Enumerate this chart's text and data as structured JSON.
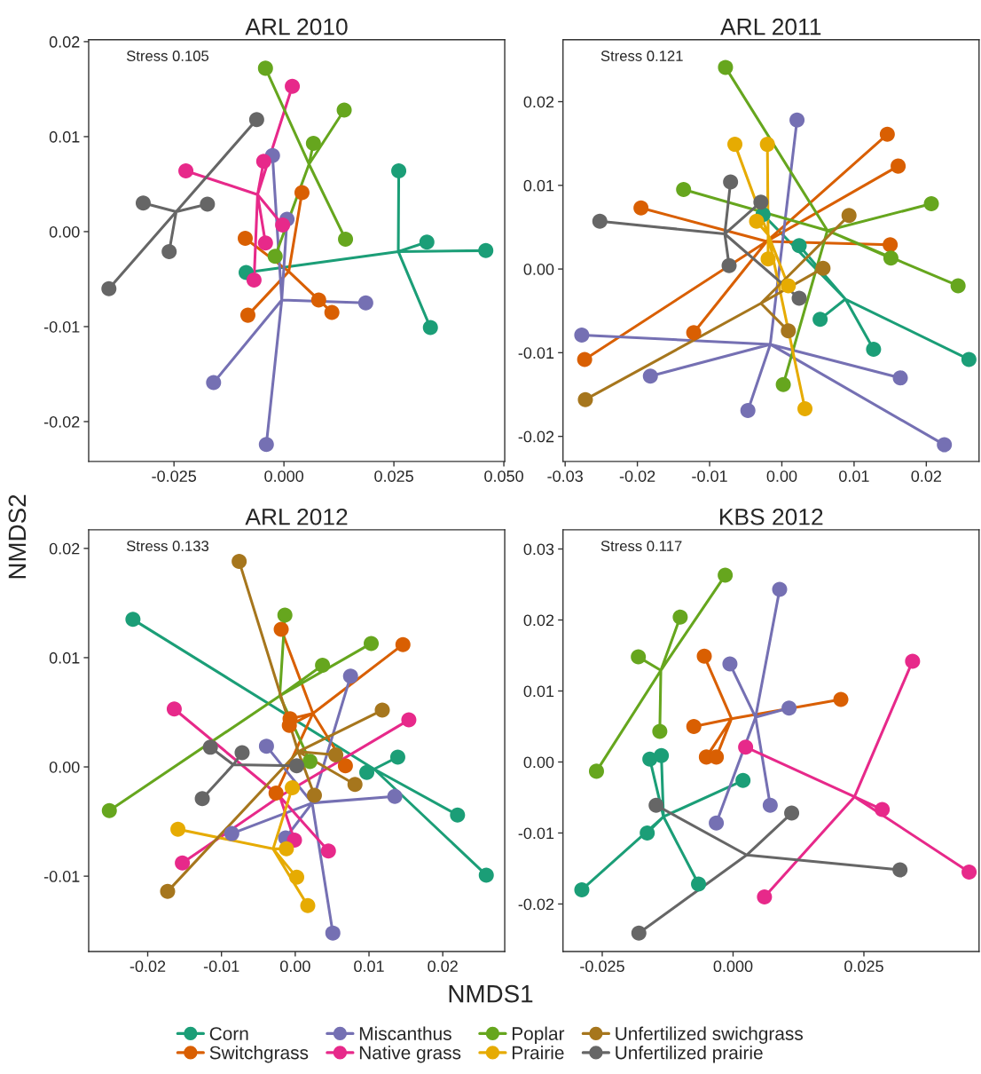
{
  "chart_data": [
    {
      "type": "scatter",
      "title": "ARL 2010",
      "ylabel": "NMDS2",
      "annotations": [
        "Stress 0.105"
      ],
      "xlim": [
        -0.0444,
        0.0502
      ],
      "ylim": [
        -0.0242,
        0.0202
      ],
      "xticks": [
        {
          "value": -0.025,
          "label": "-0.025"
        },
        {
          "value": 0,
          "label": "0.000"
        },
        {
          "value": 0.025,
          "label": "0.025"
        },
        {
          "value": 0.05,
          "label": "0.050"
        }
      ],
      "yticks": [
        {
          "value": 0.02,
          "label": "0.02"
        },
        {
          "value": 0.01,
          "label": "0.01"
        },
        {
          "value": 0,
          "label": "0.00"
        },
        {
          "value": -0.01,
          "label": "-0.01"
        },
        {
          "value": -0.02,
          "label": "-0.02"
        }
      ],
      "grid": false,
      "line_style": "solid",
      "legend": "bottom",
      "series": [
        {
          "type": "line",
          "color": "#1b9e77",
          "x": [
            0.0261,
            0.026,
            0.0325,
            0.026,
            0.0459,
            0.026,
            0.0333,
            0.026,
            -0.0086
          ],
          "values": [
            0.0064,
            -0.0021,
            -0.0011,
            -0.0021,
            -0.002,
            -0.0021,
            -0.0101,
            -0.0021,
            -0.0043
          ]
        },
        {
          "type": "line",
          "color": "#d95f02",
          "x": [
            0.0041,
            0.0011,
            -0.0088,
            0.0011,
            0.0079,
            0.0011,
            0.0109,
            0.0011,
            -0.0082
          ],
          "values": [
            0.0041,
            -0.0042,
            -0.0007,
            -0.0042,
            -0.0072,
            -0.0042,
            -0.0085,
            -0.0042,
            -0.0088
          ]
        },
        {
          "type": "line",
          "color": "#7570b3",
          "x": [
            -0.0026,
            -0.0005,
            0.0007,
            -0.0005,
            0.0186,
            -0.0005,
            -0.016,
            -0.0005,
            -0.004
          ],
          "values": [
            0.008,
            -0.0072,
            0.0013,
            -0.0072,
            -0.0075,
            -0.0072,
            -0.0159,
            -0.0072,
            -0.0224
          ]
        },
        {
          "type": "line",
          "color": "#e7298a",
          "x": [
            0.0019,
            -0.006,
            -0.0223,
            -0.006,
            -0.0046,
            -0.006,
            -0.0003,
            -0.006,
            -0.0042,
            -0.006,
            -0.0068
          ],
          "values": [
            0.0153,
            0.0039,
            0.0064,
            0.0039,
            0.0074,
            0.0039,
            0.0007,
            0.0039,
            -0.0012,
            0.0039,
            -0.0051
          ]
        },
        {
          "type": "line",
          "color": "#66a61e",
          "x": [
            -0.0042,
            0.0057,
            0.0137,
            0.0057,
            0.0067,
            0.0057,
            0.014,
            0.0057,
            -0.002
          ],
          "values": [
            0.0172,
            0.0071,
            0.0128,
            0.0071,
            0.0093,
            0.0071,
            -0.0008,
            0.0071,
            -0.0026
          ]
        },
        {
          "type": "line",
          "color": "#666666",
          "x": [
            -0.0062,
            -0.0245,
            -0.032,
            -0.0245,
            -0.0174,
            -0.0245,
            -0.0261,
            -0.0245,
            -0.0398
          ],
          "values": [
            0.0118,
            0.0021,
            0.003,
            0.0021,
            0.0029,
            0.0021,
            -0.0021,
            0.0021,
            -0.006
          ]
        },
        {
          "type": "scatter",
          "marker": "circle",
          "name": "Corn",
          "color": "#1b9e77",
          "x": [
            0.0261,
            0.0325,
            0.0459,
            0.0333,
            -0.0086
          ],
          "values": [
            0.0064,
            -0.0011,
            -0.002,
            -0.0101,
            -0.0043
          ]
        },
        {
          "type": "scatter",
          "marker": "circle",
          "name": "Switchgrass",
          "color": "#d95f02",
          "x": [
            0.0041,
            -0.0088,
            0.0079,
            0.0109,
            -0.0082
          ],
          "values": [
            0.0041,
            -0.0007,
            -0.0072,
            -0.0085,
            -0.0088
          ]
        },
        {
          "type": "scatter",
          "marker": "circle",
          "name": "Miscanthus",
          "color": "#7570b3",
          "x": [
            -0.0026,
            0.0007,
            0.0186,
            -0.016,
            -0.004
          ],
          "values": [
            0.008,
            0.0013,
            -0.0075,
            -0.0159,
            -0.0224
          ]
        },
        {
          "type": "scatter",
          "marker": "circle",
          "name": "Native grass",
          "color": "#e7298a",
          "x": [
            0.0019,
            -0.0223,
            -0.0046,
            -0.0003,
            -0.0042,
            -0.0068
          ],
          "values": [
            0.0153,
            0.0064,
            0.0074,
            0.0007,
            -0.0012,
            -0.0051
          ]
        },
        {
          "type": "scatter",
          "marker": "circle",
          "name": "Poplar",
          "color": "#66a61e",
          "x": [
            -0.0042,
            0.0137,
            0.0067,
            0.014,
            -0.002
          ],
          "values": [
            0.0172,
            0.0128,
            0.0093,
            -0.0008,
            -0.0026
          ]
        },
        {
          "type": "scatter",
          "marker": "circle",
          "name": "Unfertilized prairie",
          "color": "#666666",
          "x": [
            -0.0062,
            -0.032,
            -0.0174,
            -0.0261,
            -0.0398
          ],
          "values": [
            0.0118,
            0.003,
            0.0029,
            -0.0021,
            -0.006
          ]
        }
      ]
    },
    {
      "type": "scatter",
      "title": "ARL 2011",
      "annotations": [
        "Stress 0.121"
      ],
      "xlim": [
        -0.0303,
        0.0273
      ],
      "ylim": [
        -0.023,
        0.0274
      ],
      "xticks": [
        {
          "value": -0.03,
          "label": "-0.03"
        },
        {
          "value": -0.02,
          "label": "-0.02"
        },
        {
          "value": -0.01,
          "label": "-0.01"
        },
        {
          "value": 0,
          "label": "0.00"
        },
        {
          "value": 0.01,
          "label": "0.01"
        },
        {
          "value": 0.02,
          "label": "0.02"
        }
      ],
      "yticks": [
        {
          "value": 0.02,
          "label": "0.02"
        },
        {
          "value": 0.01,
          "label": "0.01"
        },
        {
          "value": 0,
          "label": "0.00"
        },
        {
          "value": -0.01,
          "label": "-0.01"
        },
        {
          "value": -0.02,
          "label": "-0.02"
        }
      ],
      "grid": false,
      "line_style": "solid",
      "legend": "bottom",
      "series": [
        {
          "type": "line",
          "color": "#1b9e77",
          "x": [
            0.0024,
            0.0088,
            0.0053,
            0.0088,
            0.0127,
            0.0088,
            0.0259,
            0.0088,
            -0.0026
          ],
          "values": [
            0.0028,
            -0.0036,
            -0.006,
            -0.0036,
            -0.0096,
            -0.0036,
            -0.0108,
            -0.0036,
            0.0065
          ]
        },
        {
          "type": "line",
          "color": "#d95f02",
          "x": [
            0.0146,
            -0.0021,
            0.0161,
            -0.0021,
            -0.0195,
            -0.0021,
            0.015,
            -0.0021,
            -0.0122,
            -0.0021,
            -0.0273
          ],
          "values": [
            0.0161,
            0.0033,
            0.0123,
            0.0033,
            0.0073,
            0.0033,
            0.0029,
            0.0033,
            -0.0076,
            0.0033,
            -0.0108
          ]
        },
        {
          "type": "line",
          "color": "#7570b3",
          "x": [
            0.0021,
            -0.0016,
            -0.0277,
            -0.0016,
            -0.0182,
            -0.0016,
            -0.0047,
            -0.0016,
            0.0164,
            -0.0016,
            0.0225
          ],
          "values": [
            0.0178,
            -0.009,
            -0.0079,
            -0.009,
            -0.0128,
            -0.009,
            -0.0169,
            -0.009,
            -0.013,
            -0.009,
            -0.021
          ]
        },
        {
          "type": "line",
          "color": "#66a61e",
          "x": [
            -0.0078,
            0.0063,
            -0.0136,
            0.0063,
            0.0207,
            0.0063,
            0.0151,
            0.0063,
            0.0244,
            0.0063,
            0.0002
          ],
          "values": [
            0.0241,
            0.0046,
            0.0095,
            0.0046,
            0.0078,
            0.0046,
            0.0013,
            0.0046,
            -0.002,
            0.0046,
            -0.0138
          ]
        },
        {
          "type": "line",
          "color": "#e6ab02",
          "x": [
            -0.0065,
            -0.0019,
            -0.002,
            -0.0019,
            -0.0035,
            -0.0019,
            -0.0019,
            -0.0019,
            0.0009,
            -0.0019,
            0.0032
          ],
          "values": [
            0.0149,
            0.0041,
            0.0149,
            0.0041,
            0.0057,
            0.0041,
            0.0012,
            0.0041,
            -0.002,
            0.0041,
            -0.0167
          ]
        },
        {
          "type": "line",
          "color": "#a6761d",
          "x": [
            0.0093,
            -0.0029,
            0.0057,
            -0.0029,
            0.0009,
            -0.0029,
            -0.0272
          ],
          "values": [
            0.0064,
            -0.0041,
            0.0001,
            -0.0041,
            -0.0074,
            -0.0041,
            -0.0156
          ]
        },
        {
          "type": "line",
          "color": "#666666",
          "x": [
            -0.0071,
            -0.0079,
            -0.0029,
            -0.0079,
            -0.0252,
            -0.0079,
            -0.0073,
            -0.0079,
            0.0024
          ],
          "values": [
            0.0104,
            0.0042,
            0.008,
            0.0042,
            0.0057,
            0.0042,
            0.0004,
            0.0042,
            -0.0035
          ]
        },
        {
          "type": "scatter",
          "marker": "circle",
          "name": "Corn",
          "color": "#1b9e77",
          "x": [
            0.0024,
            0.0053,
            0.0127,
            0.0259,
            -0.0026
          ],
          "values": [
            0.0028,
            -0.006,
            -0.0096,
            -0.0108,
            0.0065
          ]
        },
        {
          "type": "scatter",
          "marker": "circle",
          "name": "Switchgrass",
          "color": "#d95f02",
          "x": [
            0.0146,
            0.0161,
            -0.0195,
            0.015,
            -0.0122,
            -0.0273
          ],
          "values": [
            0.0161,
            0.0123,
            0.0073,
            0.0029,
            -0.0076,
            -0.0108
          ]
        },
        {
          "type": "scatter",
          "marker": "circle",
          "name": "Miscanthus",
          "color": "#7570b3",
          "x": [
            0.0021,
            -0.0277,
            -0.0182,
            -0.0047,
            0.0164,
            0.0225
          ],
          "values": [
            0.0178,
            -0.0079,
            -0.0128,
            -0.0169,
            -0.013,
            -0.021
          ]
        },
        {
          "type": "scatter",
          "marker": "circle",
          "name": "Poplar",
          "color": "#66a61e",
          "x": [
            -0.0078,
            -0.0136,
            0.0207,
            0.0151,
            0.0244,
            0.0002
          ],
          "values": [
            0.0241,
            0.0095,
            0.0078,
            0.0013,
            -0.002,
            -0.0138
          ]
        },
        {
          "type": "scatter",
          "marker": "circle",
          "name": "Prairie",
          "color": "#e6ab02",
          "x": [
            -0.0065,
            -0.002,
            -0.0035,
            -0.0019,
            0.0009,
            0.0032
          ],
          "values": [
            0.0149,
            0.0149,
            0.0057,
            0.0012,
            -0.002,
            -0.0167
          ]
        },
        {
          "type": "scatter",
          "marker": "circle",
          "name": "Unfertilized swichgrass",
          "color": "#a6761d",
          "x": [
            0.0093,
            0.0057,
            0.0009,
            -0.0272
          ],
          "values": [
            0.0064,
            0.0001,
            -0.0074,
            -0.0156
          ]
        },
        {
          "type": "scatter",
          "marker": "circle",
          "name": "Unfertilized prairie",
          "color": "#666666",
          "x": [
            -0.0071,
            -0.0029,
            -0.0252,
            -0.0073,
            0.0024
          ],
          "values": [
            0.0104,
            0.008,
            0.0057,
            0.0004,
            -0.0035
          ]
        }
      ]
    },
    {
      "type": "scatter",
      "title": "ARL 2012",
      "xlabel": "NMDS1",
      "annotations": [
        "Stress 0.133"
      ],
      "xlim": [
        -0.028,
        0.0284
      ],
      "ylim": [
        -0.0169,
        0.0217
      ],
      "xticks": [
        {
          "value": -0.02,
          "label": "-0.02"
        },
        {
          "value": -0.01,
          "label": "-0.01"
        },
        {
          "value": 0,
          "label": "0.00"
        },
        {
          "value": 0.01,
          "label": "0.01"
        },
        {
          "value": 0.02,
          "label": "0.02"
        }
      ],
      "yticks": [
        {
          "value": 0.02,
          "label": "0.02"
        },
        {
          "value": 0.01,
          "label": "0.01"
        },
        {
          "value": 0,
          "label": "0.00"
        },
        {
          "value": -0.01,
          "label": "-0.01"
        }
      ],
      "grid": false,
      "line_style": "solid",
      "legend": "bottom",
      "series": [
        {
          "type": "line",
          "color": "#1b9e77",
          "x": [
            -0.022,
            0.0107,
            0.0139,
            0.0107,
            0.0097,
            0.0107,
            0.022,
            0.0107,
            0.0259
          ],
          "values": [
            0.0135,
            -0.0002,
            0.0009,
            -0.0002,
            -0.0005,
            -0.0002,
            -0.0044,
            -0.0002,
            -0.0099
          ]
        },
        {
          "type": "line",
          "color": "#d95f02",
          "x": [
            -0.0019,
            0.0024,
            0.0146,
            0.0024,
            -0.0007,
            0.0024,
            -0.0008,
            0.0024,
            0.0068,
            0.0024,
            -0.0026
          ],
          "values": [
            0.0126,
            0.0049,
            0.0112,
            0.0049,
            0.0044,
            0.0049,
            0.0038,
            0.0049,
            0.0001,
            0.0049,
            -0.0024
          ]
        },
        {
          "type": "line",
          "color": "#7570b3",
          "x": [
            0.0075,
            0.0023,
            -0.0039,
            0.0023,
            0.0135,
            0.0023,
            -0.0086,
            0.0023,
            -0.0013,
            0.0023,
            0.0051
          ],
          "values": [
            0.0083,
            -0.0033,
            0.0019,
            -0.0033,
            -0.0027,
            -0.0033,
            -0.0061,
            -0.0033,
            -0.0065,
            -0.0033,
            -0.0152
          ]
        },
        {
          "type": "line",
          "color": "#e7298a",
          "x": [
            -0.0164,
            -0.0021,
            0.0154,
            -0.0021,
            -0.0153,
            -0.0021,
            -0.0001,
            -0.0021,
            0.0045
          ],
          "values": [
            0.0053,
            -0.0027,
            0.0043,
            -0.0027,
            -0.0088,
            -0.0027,
            -0.0067,
            -0.0027,
            -0.0077
          ]
        },
        {
          "type": "line",
          "color": "#66a61e",
          "x": [
            -0.0014,
            -0.0021,
            0.0103,
            -0.0021,
            0.0037,
            -0.0021,
            0.002,
            -0.0021,
            -0.0252
          ],
          "values": [
            0.0139,
            0.0065,
            0.0113,
            0.0065,
            0.0093,
            0.0065,
            0.0005,
            0.0065,
            -0.004
          ]
        },
        {
          "type": "line",
          "color": "#e6ab02",
          "x": [
            -0.0159,
            -0.003,
            -0.0004,
            -0.003,
            -0.0012,
            -0.003,
            0.0002,
            -0.003,
            0.0017
          ],
          "values": [
            -0.0057,
            -0.0075,
            -0.0019,
            -0.0075,
            -0.0075,
            -0.0075,
            -0.0101,
            -0.0075,
            -0.0127
          ]
        },
        {
          "type": "line",
          "color": "#a6761d",
          "x": [
            -0.0076,
            0.0004,
            0.0118,
            0.0004,
            0.0055,
            0.0004,
            0.0081,
            0.0004,
            0.0026,
            0.0004,
            -0.0173
          ],
          "values": [
            0.0188,
            0.0014,
            0.0052,
            0.0014,
            0.0011,
            0.0014,
            -0.0016,
            0.0014,
            -0.0026,
            0.0014,
            -0.0114
          ]
        },
        {
          "type": "line",
          "color": "#666666",
          "x": [
            -0.0115,
            -0.0084,
            -0.0072,
            -0.0084,
            0.0002,
            -0.0084,
            -0.0126
          ],
          "values": [
            0.0018,
            0.0002,
            0.0013,
            0.0002,
            0.0001,
            0.0002,
            -0.0029
          ]
        },
        {
          "type": "scatter",
          "marker": "circle",
          "name": "Corn",
          "color": "#1b9e77",
          "x": [
            -0.022,
            0.0139,
            0.0097,
            0.022,
            0.0259
          ],
          "values": [
            0.0135,
            0.0009,
            -0.0005,
            -0.0044,
            -0.0099
          ]
        },
        {
          "type": "scatter",
          "marker": "circle",
          "name": "Switchgrass",
          "color": "#d95f02",
          "x": [
            -0.0019,
            0.0146,
            -0.0007,
            -0.0008,
            0.0068,
            -0.0026
          ],
          "values": [
            0.0126,
            0.0112,
            0.0044,
            0.0038,
            0.0001,
            -0.0024
          ]
        },
        {
          "type": "scatter",
          "marker": "circle",
          "name": "Miscanthus",
          "color": "#7570b3",
          "x": [
            0.0075,
            -0.0039,
            0.0135,
            -0.0086,
            -0.0013,
            0.0051
          ],
          "values": [
            0.0083,
            0.0019,
            -0.0027,
            -0.0061,
            -0.0065,
            -0.0152
          ]
        },
        {
          "type": "scatter",
          "marker": "circle",
          "name": "Native grass",
          "color": "#e7298a",
          "x": [
            -0.0164,
            0.0154,
            -0.0153,
            -0.0001,
            0.0045
          ],
          "values": [
            0.0053,
            0.0043,
            -0.0088,
            -0.0067,
            -0.0077
          ]
        },
        {
          "type": "scatter",
          "marker": "circle",
          "name": "Poplar",
          "color": "#66a61e",
          "x": [
            -0.0014,
            0.0103,
            0.0037,
            0.002,
            -0.0252
          ],
          "values": [
            0.0139,
            0.0113,
            0.0093,
            0.0005,
            -0.004
          ]
        },
        {
          "type": "scatter",
          "marker": "circle",
          "name": "Prairie",
          "color": "#e6ab02",
          "x": [
            -0.0159,
            -0.0004,
            -0.0012,
            0.0002,
            0.0017
          ],
          "values": [
            -0.0057,
            -0.0019,
            -0.0075,
            -0.0101,
            -0.0127
          ]
        },
        {
          "type": "scatter",
          "marker": "circle",
          "name": "Unfertilized swichgrass",
          "color": "#a6761d",
          "x": [
            -0.0076,
            0.0118,
            0.0055,
            0.0081,
            0.0026,
            -0.0173
          ],
          "values": [
            0.0188,
            0.0052,
            0.0011,
            -0.0016,
            -0.0026,
            -0.0114
          ]
        },
        {
          "type": "scatter",
          "marker": "circle",
          "name": "Unfertilized prairie",
          "color": "#666666",
          "x": [
            -0.0115,
            -0.0072,
            0.0002,
            -0.0126
          ],
          "values": [
            0.0018,
            0.0013,
            0.0001,
            -0.0029
          ]
        }
      ]
    },
    {
      "type": "scatter",
      "title": "KBS 2012",
      "annotations": [
        "Stress 0.117"
      ],
      "xlim": [
        -0.0325,
        0.047
      ],
      "ylim": [
        -0.0267,
        0.0327
      ],
      "xticks": [
        {
          "value": -0.025,
          "label": "-0.025"
        },
        {
          "value": 0,
          "label": "0.000"
        },
        {
          "value": 0.025,
          "label": "0.025"
        }
      ],
      "yticks": [
        {
          "value": 0.03,
          "label": "0.03"
        },
        {
          "value": 0.02,
          "label": "0.02"
        },
        {
          "value": 0.01,
          "label": "0.01"
        },
        {
          "value": 0,
          "label": "0.00"
        },
        {
          "value": -0.01,
          "label": "-0.01"
        },
        {
          "value": -0.02,
          "label": "-0.02"
        }
      ],
      "grid": false,
      "line_style": "solid",
      "legend": "bottom",
      "series": [
        {
          "type": "line",
          "color": "#1b9e77",
          "x": [
            -0.0159,
            -0.0133,
            -0.0137,
            -0.0133,
            0.0019,
            -0.0133,
            -0.0164,
            -0.0133,
            -0.0289,
            -0.0133,
            -0.0066
          ],
          "values": [
            0.0004,
            -0.0077,
            0.0009,
            -0.0077,
            -0.0026,
            -0.0077,
            -0.01,
            -0.0077,
            -0.018,
            -0.0077,
            -0.0172
          ]
        },
        {
          "type": "line",
          "color": "#d95f02",
          "x": [
            -0.0055,
            -0.0003,
            0.0206,
            -0.0003,
            -0.0075,
            -0.0003,
            -0.0051,
            -0.0003,
            -0.0032
          ],
          "values": [
            0.0149,
            0.0061,
            0.0088,
            0.0061,
            0.005,
            0.0061,
            0.0007,
            0.0061,
            0.0007
          ]
        },
        {
          "type": "line",
          "color": "#7570b3",
          "x": [
            0.0089,
            0.0043,
            -0.0006,
            0.0043,
            0.0107,
            0.0043,
            0.0071,
            0.0043,
            -0.0032
          ],
          "values": [
            0.0243,
            0.0063,
            0.0138,
            0.0063,
            0.0076,
            0.0063,
            -0.0061,
            0.0063,
            -0.0086
          ]
        },
        {
          "type": "line",
          "color": "#e7298a",
          "x": [
            0.0343,
            0.0232,
            0.0024,
            0.0232,
            0.0285,
            0.0232,
            0.0451,
            0.0232,
            0.006
          ],
          "values": [
            0.0142,
            -0.0049,
            0.0021,
            -0.0049,
            -0.0067,
            -0.0049,
            -0.0155,
            -0.0049,
            -0.019
          ]
        },
        {
          "type": "line",
          "color": "#66a61e",
          "x": [
            -0.0015,
            -0.0138,
            -0.0101,
            -0.0138,
            -0.0181,
            -0.0138,
            -0.014,
            -0.0138,
            -0.0261
          ],
          "values": [
            0.0263,
            0.0129,
            0.0204,
            0.0129,
            0.0148,
            0.0129,
            0.0043,
            0.0129,
            -0.0013
          ]
        },
        {
          "type": "line",
          "color": "#666666",
          "x": [
            -0.0147,
            0.0026,
            0.0112,
            0.0026,
            0.0319,
            0.0026,
            -0.018
          ],
          "values": [
            -0.0061,
            -0.0131,
            -0.0072,
            -0.0131,
            -0.0152,
            -0.0131,
            -0.0241
          ]
        },
        {
          "type": "scatter",
          "marker": "circle",
          "name": "Corn",
          "color": "#1b9e77",
          "x": [
            -0.0159,
            -0.0137,
            0.0019,
            -0.0164,
            -0.0289,
            -0.0066
          ],
          "values": [
            0.0004,
            0.0009,
            -0.0026,
            -0.01,
            -0.018,
            -0.0172
          ]
        },
        {
          "type": "scatter",
          "marker": "circle",
          "name": "Switchgrass",
          "color": "#d95f02",
          "x": [
            -0.0055,
            0.0206,
            -0.0075,
            -0.0051,
            -0.0032
          ],
          "values": [
            0.0149,
            0.0088,
            0.005,
            0.0007,
            0.0007
          ]
        },
        {
          "type": "scatter",
          "marker": "circle",
          "name": "Miscanthus",
          "color": "#7570b3",
          "x": [
            0.0089,
            -0.0006,
            0.0107,
            0.0071,
            -0.0032
          ],
          "values": [
            0.0243,
            0.0138,
            0.0076,
            -0.0061,
            -0.0086
          ]
        },
        {
          "type": "scatter",
          "marker": "circle",
          "name": "Native grass",
          "color": "#e7298a",
          "x": [
            0.0343,
            0.0024,
            0.0285,
            0.0451,
            0.006
          ],
          "values": [
            0.0142,
            0.0021,
            -0.0067,
            -0.0155,
            -0.019
          ]
        },
        {
          "type": "scatter",
          "marker": "circle",
          "name": "Poplar",
          "color": "#66a61e",
          "x": [
            -0.0015,
            -0.0101,
            -0.0181,
            -0.014,
            -0.0261
          ],
          "values": [
            0.0263,
            0.0204,
            0.0148,
            0.0043,
            -0.0013
          ]
        },
        {
          "type": "scatter",
          "marker": "circle",
          "name": "Unfertilized prairie",
          "color": "#666666",
          "x": [
            -0.0147,
            0.0112,
            0.0319,
            -0.018
          ],
          "values": [
            -0.0061,
            -0.0072,
            -0.0152,
            -0.0241
          ]
        }
      ]
    }
  ]
}
